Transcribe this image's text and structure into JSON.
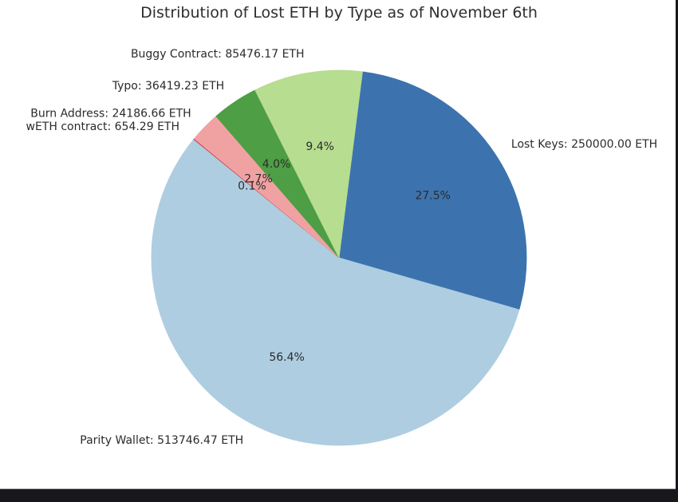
{
  "window": {
    "background": "#ffffff",
    "chrome_color": "#17171d",
    "chrome_divider": "#a8a8a8"
  },
  "chart_data": {
    "type": "pie",
    "title": "Distribution of Lost ETH by Type as of November 6th",
    "unit": "ETH",
    "start_angle_deg": 82.8,
    "direction": "clockwise",
    "label_distance": 1.1,
    "pct_distance": 0.6,
    "legend": "none",
    "slices": [
      {
        "label": "Lost Keys",
        "value": 250000.0,
        "value_str": "250000.00",
        "display_label": "Lost Keys: 250000.00 ETH",
        "pct_label": "27.5%",
        "color": "#3c73ae"
      },
      {
        "label": "Parity Wallet",
        "value": 513746.47,
        "value_str": "513746.47",
        "display_label": "Parity Wallet: 513746.47 ETH",
        "pct_label": "56.4%",
        "color": "#aecde1"
      },
      {
        "label": "wETH contract",
        "value": 654.29,
        "value_str": "654.29",
        "display_label": "wETH contract: 654.29 ETH",
        "pct_label": "0.1%",
        "color": "#d43d41"
      },
      {
        "label": "Burn Address",
        "value": 24186.66,
        "value_str": "24186.66",
        "display_label": "Burn Address: 24186.66 ETH",
        "pct_label": "2.7%",
        "color": "#f0a2a2"
      },
      {
        "label": "Typo",
        "value": 36419.23,
        "value_str": "36419.23",
        "display_label": "Typo: 36419.23 ETH",
        "pct_label": "4.0%",
        "color": "#4d9e45"
      },
      {
        "label": "Buggy Contract",
        "value": 85476.17,
        "value_str": "85476.17",
        "display_label": "Buggy Contract: 85476.17 ETH",
        "pct_label": "9.4%",
        "color": "#b7dd90"
      }
    ]
  }
}
